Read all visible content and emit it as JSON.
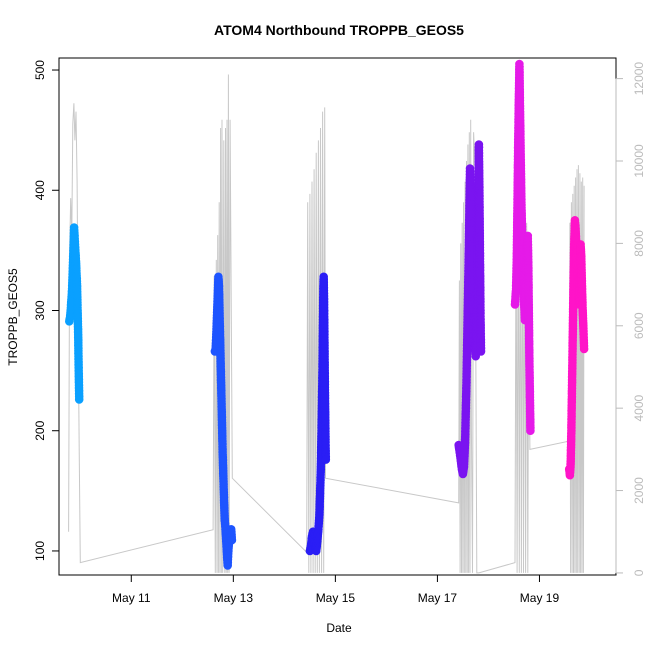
{
  "chart_data": {
    "type": "scatter",
    "title": "ATOM4 Northbound TROPPB_GEOS5",
    "xlabel": "Date",
    "ylabel": "TROPPB_GEOS5",
    "xlim": [
      "2018-05-09T14:00",
      "2018-05-20T12:00"
    ],
    "ylim": [
      80,
      510
    ],
    "y2lim": [
      -50,
      12500
    ],
    "xticks": [
      {
        "label": "May 11",
        "x": "2018-05-11"
      },
      {
        "label": "May 13",
        "x": "2018-05-13"
      },
      {
        "label": "May 15",
        "x": "2018-05-15"
      },
      {
        "label": "May 17",
        "x": "2018-05-17"
      },
      {
        "label": "May 19",
        "x": "2018-05-19"
      }
    ],
    "yticks": [
      100,
      200,
      300,
      400,
      500
    ],
    "y2ticks": [
      0,
      2000,
      4000,
      6000,
      8000,
      10000,
      12000
    ],
    "grid": false,
    "legend": "none",
    "colors": {
      "axis": "#000000",
      "right_axis": "#bbbbbb",
      "altitude_line": "#c8c8c8",
      "flight_colors": [
        "#0aa0ff",
        "#1e55ff",
        "#2a1ef5",
        "#7a14f0",
        "#e51ae8",
        "#ff14c8"
      ]
    },
    "flights": [
      {
        "color": "#0aa0ff",
        "points": [
          [
            "2018-05-09T18:50",
            291
          ],
          [
            "2018-05-09T19:10",
            294
          ],
          [
            "2018-05-09T19:30",
            300
          ],
          [
            "2018-05-09T19:50",
            309
          ],
          [
            "2018-05-09T20:10",
            318
          ],
          [
            "2018-05-09T20:30",
            335
          ],
          [
            "2018-05-09T20:50",
            352
          ],
          [
            "2018-05-09T21:05",
            369
          ],
          [
            "2018-05-09T21:20",
            362
          ],
          [
            "2018-05-09T21:40",
            350
          ],
          [
            "2018-05-09T22:00",
            341
          ],
          [
            "2018-05-09T22:15",
            331
          ],
          [
            "2018-05-09T22:30",
            320
          ],
          [
            "2018-05-09T22:45",
            300
          ],
          [
            "2018-05-09T23:00",
            282
          ],
          [
            "2018-05-09T23:10",
            262
          ],
          [
            "2018-05-09T23:20",
            245
          ],
          [
            "2018-05-09T23:30",
            226
          ]
        ]
      },
      {
        "color": "#1e55ff",
        "points": [
          [
            "2018-05-12T15:20",
            266
          ],
          [
            "2018-05-12T15:40",
            268
          ],
          [
            "2018-05-12T16:00",
            280
          ],
          [
            "2018-05-12T16:20",
            296
          ],
          [
            "2018-05-12T16:40",
            312
          ],
          [
            "2018-05-12T17:00",
            328
          ],
          [
            "2018-05-12T17:15",
            320
          ],
          [
            "2018-05-12T17:30",
            300
          ],
          [
            "2018-05-12T17:45",
            280
          ],
          [
            "2018-05-12T18:00",
            260
          ],
          [
            "2018-05-12T18:15",
            240
          ],
          [
            "2018-05-12T18:30",
            220
          ],
          [
            "2018-05-12T18:45",
            200
          ],
          [
            "2018-05-12T19:00",
            180
          ],
          [
            "2018-05-12T19:20",
            160
          ],
          [
            "2018-05-12T19:40",
            140
          ],
          [
            "2018-05-12T20:00",
            125
          ],
          [
            "2018-05-12T20:20",
            118
          ],
          [
            "2018-05-12T20:40",
            108
          ],
          [
            "2018-05-12T21:00",
            97
          ],
          [
            "2018-05-12T21:20",
            88
          ],
          [
            "2018-05-12T21:40",
            100
          ],
          [
            "2018-05-12T22:00",
            108
          ],
          [
            "2018-05-12T22:30",
            112
          ],
          [
            "2018-05-12T23:00",
            118
          ],
          [
            "2018-05-12T23:20",
            109
          ]
        ]
      },
      {
        "color": "#2a1ef5",
        "points": [
          [
            "2018-05-14T12:00",
            100
          ],
          [
            "2018-05-14T12:30",
            104
          ],
          [
            "2018-05-14T13:00",
            112
          ],
          [
            "2018-05-14T13:30",
            116
          ],
          [
            "2018-05-14T14:00",
            110
          ],
          [
            "2018-05-14T14:30",
            104
          ],
          [
            "2018-05-14T15:00",
            100
          ],
          [
            "2018-05-14T15:30",
            108
          ],
          [
            "2018-05-14T16:00",
            118
          ],
          [
            "2018-05-14T16:30",
            130
          ],
          [
            "2018-05-14T16:50",
            150
          ],
          [
            "2018-05-14T17:10",
            170
          ],
          [
            "2018-05-14T17:30",
            200
          ],
          [
            "2018-05-14T17:45",
            230
          ],
          [
            "2018-05-14T18:00",
            260
          ],
          [
            "2018-05-14T18:10",
            290
          ],
          [
            "2018-05-14T18:20",
            318
          ],
          [
            "2018-05-14T18:30",
            328
          ],
          [
            "2018-05-14T18:40",
            312
          ],
          [
            "2018-05-14T18:50",
            280
          ],
          [
            "2018-05-14T19:00",
            250
          ],
          [
            "2018-05-14T19:10",
            220
          ],
          [
            "2018-05-14T19:20",
            195
          ],
          [
            "2018-05-14T19:30",
            176
          ]
        ]
      },
      {
        "color": "#7a14f0",
        "points": [
          [
            "2018-05-17T10:00",
            188
          ],
          [
            "2018-05-17T10:30",
            182
          ],
          [
            "2018-05-17T11:00",
            175
          ],
          [
            "2018-05-17T11:30",
            168
          ],
          [
            "2018-05-17T12:00",
            164
          ],
          [
            "2018-05-17T12:30",
            170
          ],
          [
            "2018-05-17T13:00",
            190
          ],
          [
            "2018-05-17T13:40",
            240
          ],
          [
            "2018-05-17T14:10",
            290
          ],
          [
            "2018-05-17T14:40",
            340
          ],
          [
            "2018-05-17T15:00",
            380
          ],
          [
            "2018-05-17T15:20",
            418
          ],
          [
            "2018-05-17T15:40",
            396
          ],
          [
            "2018-05-17T16:00",
            365
          ],
          [
            "2018-05-17T16:20",
            335
          ],
          [
            "2018-05-17T16:40",
            310
          ],
          [
            "2018-05-17T17:00",
            290
          ],
          [
            "2018-05-17T17:20",
            275
          ],
          [
            "2018-05-17T17:40",
            268
          ],
          [
            "2018-05-17T18:00",
            262
          ],
          [
            "2018-05-17T18:20",
            275
          ],
          [
            "2018-05-17T18:40",
            300
          ],
          [
            "2018-05-17T19:00",
            330
          ],
          [
            "2018-05-17T19:15",
            380
          ],
          [
            "2018-05-17T19:30",
            438
          ],
          [
            "2018-05-17T19:45",
            400
          ],
          [
            "2018-05-17T20:00",
            350
          ],
          [
            "2018-05-17T20:15",
            300
          ],
          [
            "2018-05-17T20:30",
            266
          ]
        ]
      },
      {
        "color": "#e51ae8",
        "points": [
          [
            "2018-05-18T12:30",
            305
          ],
          [
            "2018-05-18T13:00",
            318
          ],
          [
            "2018-05-18T13:20",
            345
          ],
          [
            "2018-05-18T13:40",
            390
          ],
          [
            "2018-05-18T14:00",
            440
          ],
          [
            "2018-05-18T14:20",
            480
          ],
          [
            "2018-05-18T14:35",
            505
          ],
          [
            "2018-05-18T14:50",
            470
          ],
          [
            "2018-05-18T15:10",
            430
          ],
          [
            "2018-05-18T15:30",
            390
          ],
          [
            "2018-05-18T15:50",
            365
          ],
          [
            "2018-05-18T16:10",
            345
          ],
          [
            "2018-05-18T16:30",
            325
          ],
          [
            "2018-05-18T16:50",
            305
          ],
          [
            "2018-05-18T17:10",
            292
          ],
          [
            "2018-05-18T17:30",
            300
          ],
          [
            "2018-05-18T17:50",
            330
          ],
          [
            "2018-05-18T18:10",
            355
          ],
          [
            "2018-05-18T18:30",
            362
          ],
          [
            "2018-05-18T18:45",
            340
          ],
          [
            "2018-05-18T19:00",
            300
          ],
          [
            "2018-05-18T19:15",
            260
          ],
          [
            "2018-05-18T19:30",
            230
          ],
          [
            "2018-05-18T19:45",
            200
          ]
        ]
      },
      {
        "color": "#ff14c8",
        "points": [
          [
            "2018-05-19T14:00",
            168
          ],
          [
            "2018-05-19T14:20",
            163
          ],
          [
            "2018-05-19T14:40",
            172
          ],
          [
            "2018-05-19T15:00",
            200
          ],
          [
            "2018-05-19T15:20",
            240
          ],
          [
            "2018-05-19T15:40",
            280
          ],
          [
            "2018-05-19T16:00",
            320
          ],
          [
            "2018-05-19T16:20",
            355
          ],
          [
            "2018-05-19T16:40",
            375
          ],
          [
            "2018-05-19T17:00",
            368
          ],
          [
            "2018-05-19T17:20",
            355
          ],
          [
            "2018-05-19T17:40",
            340
          ],
          [
            "2018-05-19T18:00",
            325
          ],
          [
            "2018-05-19T18:20",
            312
          ],
          [
            "2018-05-19T18:40",
            305
          ],
          [
            "2018-05-19T19:00",
            310
          ],
          [
            "2018-05-19T19:20",
            355
          ],
          [
            "2018-05-19T19:40",
            345
          ],
          [
            "2018-05-19T20:00",
            320
          ],
          [
            "2018-05-19T20:20",
            300
          ],
          [
            "2018-05-19T20:40",
            285
          ],
          [
            "2018-05-19T21:00",
            268
          ]
        ]
      }
    ],
    "altitude_series": {
      "axis": "right",
      "points": [
        [
          "2018-05-09T18:30",
          1000
        ],
        [
          "2018-05-09T19:00",
          7800
        ],
        [
          "2018-05-09T19:30",
          9100
        ],
        [
          "2018-05-09T20:00",
          8200
        ],
        [
          "2018-05-09T20:30",
          10900
        ],
        [
          "2018-05-09T21:00",
          11400
        ],
        [
          "2018-05-09T21:30",
          10500
        ],
        [
          "2018-05-09T22:00",
          11200
        ],
        [
          "2018-05-09T22:30",
          9500
        ],
        [
          "2018-05-09T23:00",
          6000
        ],
        [
          "2018-05-09T23:30",
          3000
        ],
        [
          "2018-05-10T00:00",
          250
        ],
        [
          "2018-05-12T14:30",
          1050
        ],
        [
          "2018-05-12T15:00",
          7200
        ],
        [
          "2018-05-12T15:30",
          0
        ],
        [
          "2018-05-12T16:00",
          7600
        ],
        [
          "2018-05-12T16:20",
          0
        ],
        [
          "2018-05-12T16:40",
          8200
        ],
        [
          "2018-05-12T17:00",
          0
        ],
        [
          "2018-05-12T17:20",
          9000
        ],
        [
          "2018-05-12T17:40",
          0
        ],
        [
          "2018-05-12T18:00",
          10800
        ],
        [
          "2018-05-12T18:20",
          0
        ],
        [
          "2018-05-12T18:40",
          11000
        ],
        [
          "2018-05-12T19:00",
          0
        ],
        [
          "2018-05-12T19:30",
          10500
        ],
        [
          "2018-05-12T20:00",
          0
        ],
        [
          "2018-05-12T20:20",
          10800
        ],
        [
          "2018-05-12T20:40",
          0
        ],
        [
          "2018-05-12T21:00",
          11000
        ],
        [
          "2018-05-12T21:20",
          0
        ],
        [
          "2018-05-12T21:40",
          12100
        ],
        [
          "2018-05-12T22:00",
          0
        ],
        [
          "2018-05-12T22:30",
          11000
        ],
        [
          "2018-05-12T23:30",
          2300
        ],
        [
          "2018-05-14T10:30",
          500
        ],
        [
          "2018-05-14T11:00",
          9000
        ],
        [
          "2018-05-14T11:30",
          0
        ],
        [
          "2018-05-14T12:00",
          9200
        ],
        [
          "2018-05-14T12:30",
          0
        ],
        [
          "2018-05-14T13:00",
          9500
        ],
        [
          "2018-05-14T13:30",
          0
        ],
        [
          "2018-05-14T14:00",
          9800
        ],
        [
          "2018-05-14T14:30",
          0
        ],
        [
          "2018-05-14T15:00",
          10200
        ],
        [
          "2018-05-14T15:30",
          0
        ],
        [
          "2018-05-14T16:00",
          10500
        ],
        [
          "2018-05-14T16:30",
          0
        ],
        [
          "2018-05-14T17:00",
          10800
        ],
        [
          "2018-05-14T17:30",
          0
        ],
        [
          "2018-05-14T18:00",
          11200
        ],
        [
          "2018-05-14T18:30",
          0
        ],
        [
          "2018-05-14T19:00",
          11300
        ],
        [
          "2018-05-14T19:20",
          2300
        ],
        [
          "2018-05-17T10:00",
          1700
        ],
        [
          "2018-05-17T10:20",
          7100
        ],
        [
          "2018-05-17T10:40",
          0
        ],
        [
          "2018-05-17T11:00",
          8000
        ],
        [
          "2018-05-17T11:20",
          0
        ],
        [
          "2018-05-17T11:40",
          8500
        ],
        [
          "2018-05-17T12:00",
          0
        ],
        [
          "2018-05-17T12:20",
          9000
        ],
        [
          "2018-05-17T12:40",
          0
        ],
        [
          "2018-05-17T13:00",
          9500
        ],
        [
          "2018-05-17T13:20",
          0
        ],
        [
          "2018-05-17T13:40",
          10000
        ],
        [
          "2018-05-17T14:00",
          0
        ],
        [
          "2018-05-17T14:20",
          10400
        ],
        [
          "2018-05-17T14:40",
          0
        ],
        [
          "2018-05-17T15:00",
          10700
        ],
        [
          "2018-05-17T15:20",
          0
        ],
        [
          "2018-05-17T15:40",
          11000
        ],
        [
          "2018-05-17T16:00",
          3500
        ],
        [
          "2018-05-17T16:30",
          0
        ],
        [
          "2018-05-17T17:00",
          10700
        ],
        [
          "2018-05-17T17:40",
          9800
        ],
        [
          "2018-05-17T18:30",
          0
        ],
        [
          "2018-05-17T19:30",
          0
        ],
        [
          "2018-05-18T12:30",
          250
        ],
        [
          "2018-05-18T13:00",
          9000
        ],
        [
          "2018-05-18T13:30",
          0
        ],
        [
          "2018-05-18T14:00",
          9500
        ],
        [
          "2018-05-18T14:30",
          0
        ],
        [
          "2018-05-18T15:00",
          9800
        ],
        [
          "2018-05-18T15:30",
          0
        ],
        [
          "2018-05-18T16:00",
          10200
        ],
        [
          "2018-05-18T16:30",
          0
        ],
        [
          "2018-05-18T17:00",
          9800
        ],
        [
          "2018-05-18T17:30",
          0
        ],
        [
          "2018-05-18T18:00",
          8500
        ],
        [
          "2018-05-18T18:30",
          0
        ],
        [
          "2018-05-18T19:00",
          7500
        ],
        [
          "2018-05-18T19:30",
          3000
        ],
        [
          "2018-05-19T14:00",
          3200
        ],
        [
          "2018-05-19T14:20",
          8500
        ],
        [
          "2018-05-19T14:40",
          0
        ],
        [
          "2018-05-19T15:00",
          9000
        ],
        [
          "2018-05-19T15:20",
          0
        ],
        [
          "2018-05-19T15:40",
          9200
        ],
        [
          "2018-05-19T16:00",
          0
        ],
        [
          "2018-05-19T16:20",
          9400
        ],
        [
          "2018-05-19T16:40",
          0
        ],
        [
          "2018-05-19T17:00",
          9600
        ],
        [
          "2018-05-19T17:20",
          0
        ],
        [
          "2018-05-19T17:40",
          9800
        ],
        [
          "2018-05-19T18:00",
          0
        ],
        [
          "2018-05-19T18:20",
          9900
        ],
        [
          "2018-05-19T18:40",
          0
        ],
        [
          "2018-05-19T19:00",
          9700
        ],
        [
          "2018-05-19T19:20",
          0
        ],
        [
          "2018-05-19T19:40",
          9500
        ],
        [
          "2018-05-19T20:00",
          0
        ],
        [
          "2018-05-19T20:20",
          9600
        ],
        [
          "2018-05-19T20:40",
          0
        ],
        [
          "2018-05-19T21:00",
          9400
        ]
      ]
    }
  }
}
